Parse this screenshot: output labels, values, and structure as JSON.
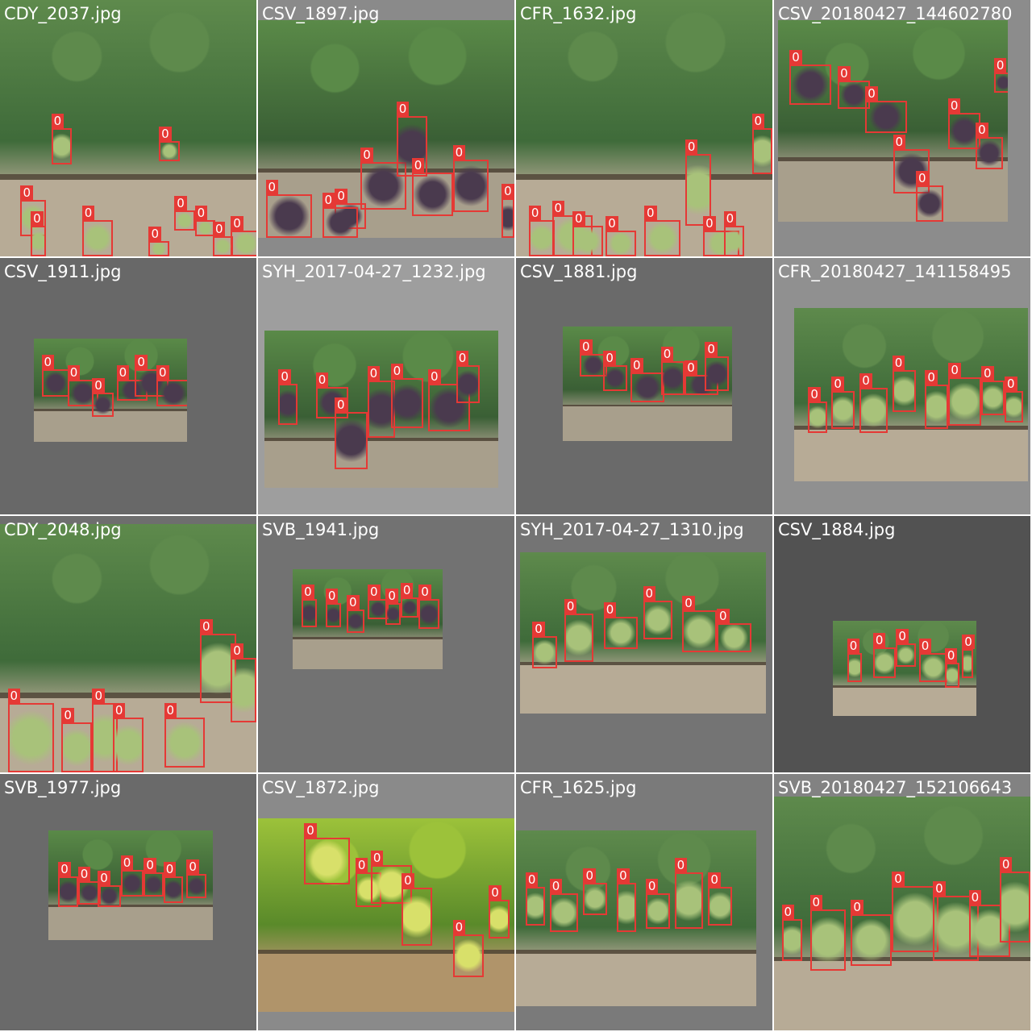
{
  "mosaic": {
    "detection_class_label": "0",
    "box_color": "#e53935",
    "tiles": [
      {
        "filename": "CDY_2037.jpg",
        "background": "#7a7a7a",
        "grape_color": "green"
      },
      {
        "filename": "CSV_1897.jpg",
        "background": "#8a8a8a",
        "grape_color": "dark"
      },
      {
        "filename": "CFR_1632.jpg",
        "background": "#7f7f7f",
        "grape_color": "green"
      },
      {
        "filename": "CSV_20180427_144602780",
        "background": "#8c8c8c",
        "grape_color": "dark"
      },
      {
        "filename": "CSV_1911.jpg",
        "background": "#686868",
        "grape_color": "dark"
      },
      {
        "filename": "SYH_2017-04-27_1232.jpg",
        "background": "#9e9e9e",
        "grape_color": "dark"
      },
      {
        "filename": "CSV_1881.jpg",
        "background": "#6a6a6a",
        "grape_color": "dark"
      },
      {
        "filename": "CFR_20180427_141158495",
        "background": "#909090",
        "grape_color": "green"
      },
      {
        "filename": "CDY_2048.jpg",
        "background": "#6e6e6e",
        "grape_color": "green"
      },
      {
        "filename": "SVB_1941.jpg",
        "background": "#727272",
        "grape_color": "dark"
      },
      {
        "filename": "SYH_2017-04-27_1310.jpg",
        "background": "#747474",
        "grape_color": "green"
      },
      {
        "filename": "CSV_1884.jpg",
        "background": "#525252",
        "grape_color": "green"
      },
      {
        "filename": "SVB_1977.jpg",
        "background": "#6a6a6a",
        "grape_color": "dark"
      },
      {
        "filename": "CSV_1872.jpg",
        "background": "#8a8a8a",
        "grape_color": "yellow"
      },
      {
        "filename": "CFR_1625.jpg",
        "background": "#7a7a7a",
        "grape_color": "green"
      },
      {
        "filename": "SVB_20180427_152106643",
        "background": "#828282",
        "grape_color": "green"
      }
    ]
  }
}
